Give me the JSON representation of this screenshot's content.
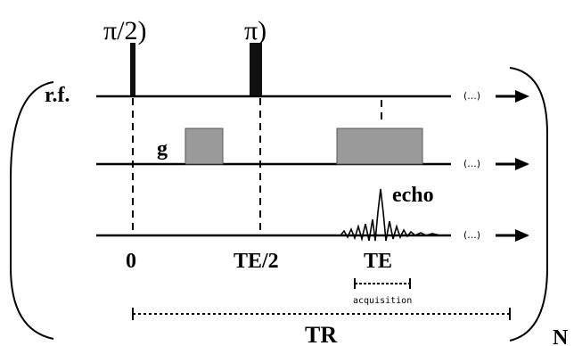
{
  "pulses": {
    "pi_half": "π/2)",
    "pi": "π)"
  },
  "channels": {
    "rf": "r.f.",
    "g": "g",
    "echo": "echo"
  },
  "ellipsis": "(...)",
  "timepoints": {
    "zero": "0",
    "te_half": "TE/2",
    "te": "TE"
  },
  "acquisition": "acquisition",
  "tr": "TR",
  "repeat": "N",
  "colors": {
    "line": "#000000",
    "gradient_fill": "#9a9a9a",
    "gradient_stroke": "#555555",
    "pulse": "#111111"
  }
}
